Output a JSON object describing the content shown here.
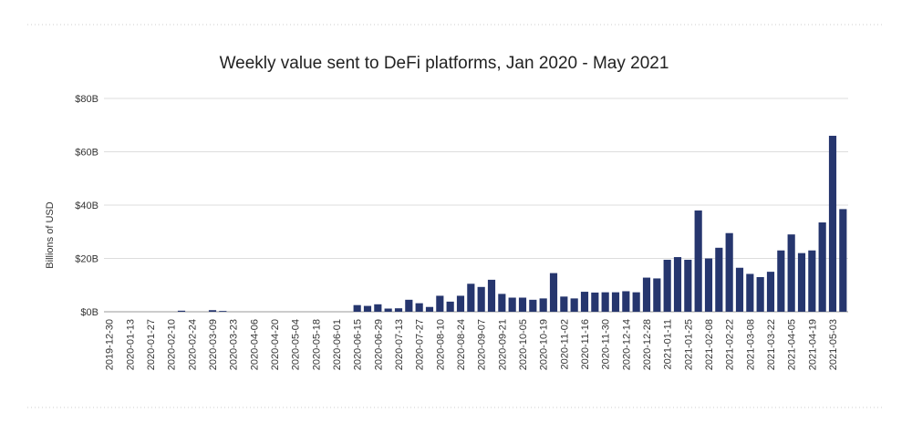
{
  "chart_data": {
    "type": "bar",
    "title": "Weekly value sent to DeFi platforms, Jan 2020 - May 2021",
    "ylabel": "Billions of USD",
    "categories": [
      "2019-12-30",
      null,
      "2020-01-13",
      null,
      "2020-01-27",
      null,
      "2020-02-10",
      null,
      "2020-02-24",
      null,
      "2020-03-09",
      null,
      "2020-03-23",
      null,
      "2020-04-06",
      null,
      "2020-04-20",
      null,
      "2020-05-04",
      null,
      "2020-05-18",
      null,
      "2020-06-01",
      null,
      "2020-06-15",
      null,
      "2020-06-29",
      null,
      "2020-07-13",
      null,
      "2020-07-27",
      null,
      "2020-08-10",
      null,
      "2020-08-24",
      null,
      "2020-09-07",
      null,
      "2020-09-21",
      null,
      "2020-10-05",
      null,
      "2020-10-19",
      null,
      "2020-11-02",
      null,
      "2020-11-16",
      null,
      "2020-11-30",
      null,
      "2020-12-14",
      null,
      "2020-12-28",
      null,
      "2021-01-11",
      null,
      "2021-01-25",
      null,
      "2021-02-08",
      null,
      "2021-02-22",
      null,
      "2021-03-08",
      null,
      "2021-03-22",
      null,
      "2021-04-05",
      null,
      "2021-04-19",
      null,
      "2021-05-03",
      null
    ],
    "values": [
      0,
      0,
      0,
      0,
      0,
      0,
      0,
      0.4,
      0,
      0,
      0.6,
      0.3,
      0,
      0,
      0,
      0,
      0,
      0,
      0,
      0,
      0,
      0,
      0,
      0,
      2.5,
      2.2,
      2.8,
      1.2,
      1.3,
      4.5,
      3.2,
      1.8,
      6.0,
      3.8,
      6.0,
      10.5,
      9.3,
      12.0,
      6.7,
      5.3,
      5.3,
      4.5,
      5.0,
      14.5,
      5.7,
      5.0,
      7.5,
      7.2,
      7.3,
      7.3,
      7.7,
      7.3,
      12.8,
      12.5,
      19.5,
      20.5,
      19.5,
      38.0,
      20.0,
      24.0,
      29.5,
      16.5,
      14.2,
      13.0,
      15.0,
      23.0,
      29.0,
      22.0,
      23.0,
      33.5,
      66.0,
      38.5
    ],
    "color": "#26366e",
    "ylim": [
      0,
      80
    ],
    "yticks": [
      {
        "value": 0,
        "label": "$0B"
      },
      {
        "value": 20,
        "label": "$20B"
      },
      {
        "value": 40,
        "label": "$40B"
      },
      {
        "value": 60,
        "label": "$60B"
      },
      {
        "value": 80,
        "label": "$80B"
      }
    ],
    "grid": true
  }
}
